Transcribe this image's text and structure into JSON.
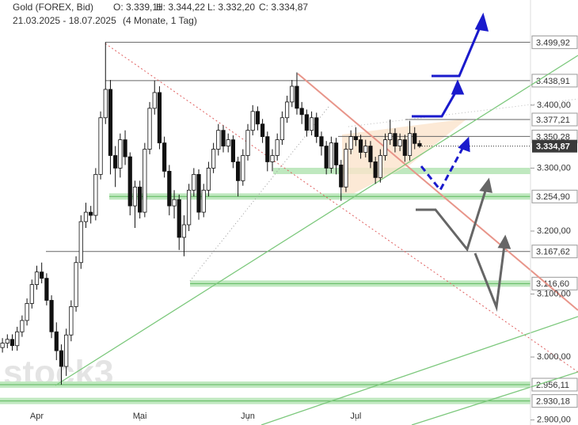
{
  "chart_data": {
    "type": "candlestick",
    "title": "Gold (FOREX, Bid)",
    "ohlc_labels": [
      "O: 3.339,11",
      "H: 3.344,22",
      "L: 3.332,20",
      "C: 3.334,87"
    ],
    "subtitle": "21.03.2025 - 18.07.2025",
    "period": "(4 Monate, 1 Tag)",
    "watermark": "stock3",
    "open": [
      3015,
      3022,
      3028,
      3018,
      3040,
      3058,
      3085,
      3115,
      3135,
      3125,
      3090,
      3040,
      3010,
      2985,
      3035,
      3080,
      3150,
      3215,
      3230,
      3225,
      3290,
      3380,
      3425,
      3320,
      3300,
      3345,
      3318,
      3240,
      3270,
      3230,
      3330,
      3395,
      3420,
      3340,
      3295,
      3240,
      3250,
      3190,
      3210,
      3265,
      3290,
      3230,
      3265,
      3300,
      3330,
      3360,
      3335,
      3345,
      3310,
      3280,
      3320,
      3360,
      3390,
      3370,
      3350,
      3310,
      3320,
      3345,
      3380,
      3405,
      3430,
      3395,
      3385,
      3360,
      3380,
      3350,
      3335,
      3300,
      3340,
      3305,
      3270,
      3330,
      3350,
      3345,
      3325,
      3335,
      3310,
      3285,
      3320,
      3345,
      3355,
      3335,
      3345,
      3320,
      3355,
      3339.11
    ],
    "high": [
      3030,
      3036,
      3036,
      3048,
      3066,
      3093,
      3123,
      3145,
      3150,
      3133,
      3098,
      3055,
      3020,
      3045,
      3090,
      3160,
      3225,
      3245,
      3240,
      3300,
      3390,
      3500,
      3440,
      3335,
      3355,
      3360,
      3325,
      3280,
      3280,
      3340,
      3405,
      3439,
      3430,
      3350,
      3305,
      3265,
      3258,
      3225,
      3275,
      3300,
      3298,
      3275,
      3310,
      3340,
      3370,
      3368,
      3355,
      3352,
      3318,
      3330,
      3370,
      3400,
      3398,
      3378,
      3358,
      3330,
      3355,
      3390,
      3415,
      3440,
      3452,
      3405,
      3393,
      3390,
      3388,
      3358,
      3343,
      3350,
      3348,
      3313,
      3340,
      3360,
      3365,
      3353,
      3345,
      3343,
      3318,
      3330,
      3355,
      3377,
      3363,
      3355,
      3353,
      3375,
      3365,
      3344.22
    ],
    "low": [
      3007,
      3014,
      3010,
      3010,
      3032,
      3050,
      3077,
      3107,
      3117,
      3082,
      3030,
      2995,
      2956,
      2970,
      3025,
      3072,
      3140,
      3205,
      3212,
      3217,
      3282,
      3370,
      3290,
      3270,
      3285,
      3305,
      3225,
      3205,
      3220,
      3222,
      3322,
      3385,
      3330,
      3285,
      3225,
      3220,
      3170,
      3160,
      3200,
      3255,
      3218,
      3222,
      3255,
      3292,
      3320,
      3325,
      3325,
      3300,
      3255,
      3272,
      3312,
      3352,
      3360,
      3340,
      3295,
      3295,
      3312,
      3337,
      3372,
      3397,
      3385,
      3370,
      3350,
      3352,
      3340,
      3320,
      3290,
      3292,
      3290,
      3248,
      3262,
      3322,
      3335,
      3315,
      3317,
      3300,
      3275,
      3277,
      3312,
      3337,
      3325,
      3327,
      3310,
      3312,
      3330,
      3332.2
    ],
    "close": [
      3022,
      3028,
      3018,
      3040,
      3058,
      3085,
      3115,
      3135,
      3125,
      3090,
      3040,
      3010,
      2985,
      3035,
      3080,
      3150,
      3215,
      3230,
      3225,
      3290,
      3380,
      3425,
      3320,
      3300,
      3345,
      3318,
      3240,
      3270,
      3230,
      3330,
      3395,
      3420,
      3340,
      3295,
      3240,
      3250,
      3190,
      3210,
      3265,
      3290,
      3230,
      3265,
      3300,
      3330,
      3360,
      3335,
      3345,
      3310,
      3280,
      3320,
      3360,
      3390,
      3370,
      3350,
      3310,
      3320,
      3345,
      3380,
      3405,
      3430,
      3395,
      3385,
      3360,
      3380,
      3350,
      3335,
      3300,
      3340,
      3305,
      3270,
      3330,
      3350,
      3345,
      3325,
      3335,
      3310,
      3285,
      3320,
      3345,
      3355,
      3335,
      3345,
      3320,
      3355,
      3339.11,
      3334.87
    ],
    "xlim": [
      -0.5,
      107.6
    ],
    "xticks": [
      {
        "value": 7,
        "label": "Apr"
      },
      {
        "value": 28,
        "label": "Mai"
      },
      {
        "value": 50,
        "label": "Jun"
      },
      {
        "value": 72,
        "label": "Jul"
      }
    ],
    "ylim": [
      2892,
      3567
    ],
    "yticks": [
      {
        "value": 3400,
        "label": "3.400,00"
      },
      {
        "value": 3300,
        "label": "3.300,00"
      },
      {
        "value": 3200,
        "label": "3.200,00"
      },
      {
        "value": 3100,
        "label": "3.100,00"
      },
      {
        "value": 3000,
        "label": "3.000,00"
      },
      {
        "value": 2900,
        "label": "2.900,00"
      }
    ],
    "levels": [
      {
        "value": 3499.92,
        "label": "3.499,92"
      },
      {
        "value": 3438.91,
        "label": "3.438,91"
      },
      {
        "value": 3377.21,
        "label": "3.377,21"
      },
      {
        "value": 3350.28,
        "label": "3.350,28"
      },
      {
        "value": 3254.9,
        "label": "3.254,90"
      },
      {
        "value": 3167.62,
        "label": "3.167,62"
      },
      {
        "value": 3116.6,
        "label": "3.116,60"
      },
      {
        "value": 2956.11,
        "label": "2.956,11"
      },
      {
        "value": 2930.18,
        "label": "2.930,18"
      }
    ],
    "last_price": {
      "value": 3334.87,
      "label": "3.334,87"
    },
    "up_color": "#ffffff",
    "down_color": "#111111"
  }
}
